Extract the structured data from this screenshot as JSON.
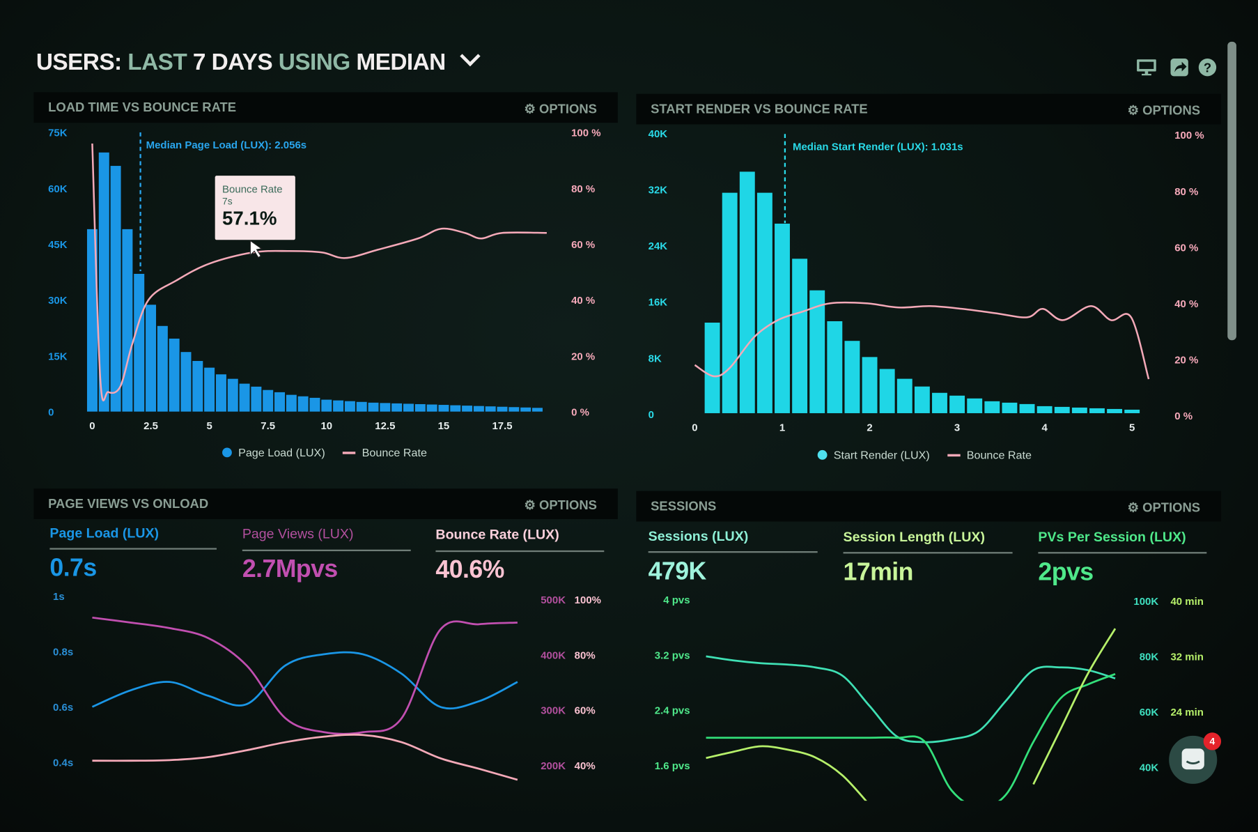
{
  "header": {
    "title_parts": [
      "USERS:",
      "LAST",
      "7 DAYS",
      "USING",
      "MEDIAN"
    ],
    "icons": [
      "monitor-icon",
      "share-icon",
      "help-icon"
    ]
  },
  "colors": {
    "page_load": "#1a96e6",
    "start_render": "#1fd6e6",
    "bounce": "#f4a9b8",
    "page_views": "#c14fb0",
    "session_teal": "#3fe0b4",
    "session_green": "#33e07a",
    "session_lime": "#b6f06a"
  },
  "panels": {
    "load_time": {
      "title": "LOAD TIME VS BOUNCE RATE",
      "options": "OPTIONS",
      "median_label": "Median Page Load (LUX): 2.056s",
      "tooltip": {
        "title": "Bounce Rate",
        "x": "7s",
        "value": "57.1%"
      },
      "legend": [
        "Page Load (LUX)",
        "Bounce Rate"
      ]
    },
    "start_render": {
      "title": "START RENDER VS BOUNCE RATE",
      "options": "OPTIONS",
      "median_label": "Median Start Render (LUX): 1.031s",
      "legend": [
        "Start Render (LUX)",
        "Bounce Rate"
      ]
    },
    "page_views": {
      "title": "PAGE VIEWS VS ONLOAD",
      "options": "OPTIONS",
      "metrics": [
        {
          "label": "Page Load (LUX)",
          "value": "0.7s"
        },
        {
          "label": "Page Views (LUX)",
          "value": "2.7Mpvs"
        },
        {
          "label": "Bounce Rate (LUX)",
          "value": "40.6%"
        }
      ]
    },
    "sessions": {
      "title": "SESSIONS",
      "options": "OPTIONS",
      "metrics": [
        {
          "label": "Sessions (LUX)",
          "value": "479K"
        },
        {
          "label": "Session Length (LUX)",
          "value": "17min"
        },
        {
          "label": "PVs Per Session (LUX)",
          "value": "2pvs"
        }
      ]
    }
  },
  "chat": {
    "badge": "4"
  },
  "chart_data": [
    {
      "type": "bar",
      "name": "load_time",
      "xticks": [
        "0",
        "2.5",
        "5",
        "7.5",
        "10",
        "12.5",
        "15",
        "17.5"
      ],
      "xtick_values": [
        0,
        2.5,
        5,
        7.5,
        10,
        12.5,
        15,
        17.5
      ],
      "yticks_left": [
        "75K",
        "60K",
        "45K",
        "30K",
        "15K",
        "0"
      ],
      "yticks_right": [
        "100 %",
        "80 %",
        "60 %",
        "40 %",
        "20 %",
        "0 %"
      ],
      "ylim_left": [
        0,
        75000
      ],
      "ylim_right": [
        0,
        100
      ],
      "median_x": 2.056,
      "bars": {
        "name": "Page Load (LUX)",
        "x": [
          0,
          0.5,
          1,
          1.5,
          2,
          2.5,
          3,
          3.5,
          4,
          4.5,
          5,
          5.5,
          6,
          6.5,
          7,
          7.5,
          8,
          8.5,
          9,
          9.5,
          10,
          10.5,
          11,
          11.5,
          12,
          12.5,
          13,
          13.5,
          14,
          14.5,
          15,
          15.5,
          16,
          16.5,
          17,
          17.5,
          18,
          18.5,
          19
        ],
        "values": [
          49000,
          69600,
          66000,
          49000,
          37000,
          28700,
          23000,
          19600,
          16000,
          13600,
          11800,
          10000,
          8800,
          7500,
          6700,
          5800,
          5200,
          4500,
          4100,
          3700,
          3200,
          3000,
          2800,
          2600,
          2400,
          2300,
          2200,
          2100,
          2000,
          1900,
          1800,
          1700,
          1600,
          1500,
          1400,
          1300,
          1200,
          1100,
          1000
        ]
      },
      "line": {
        "name": "Bounce Rate",
        "x": [
          0,
          0.34,
          0.68,
          1.2,
          1.7,
          2.4,
          3.6,
          5,
          6.85,
          8.4,
          9.8,
          10.8,
          12.2,
          13.9,
          14.9,
          15.9,
          16.6,
          17.5,
          19.4
        ],
        "values": [
          96,
          12,
          7,
          9,
          24,
          40,
          47,
          53,
          57,
          57.5,
          57,
          55,
          58,
          62,
          65.5,
          64,
          62,
          64,
          64
        ]
      }
    },
    {
      "type": "bar",
      "name": "start_render",
      "xticks": [
        "0",
        "1",
        "2",
        "3",
        "4",
        "5"
      ],
      "xtick_values": [
        0,
        1,
        2,
        3,
        4,
        5
      ],
      "yticks_left": [
        "40K",
        "32K",
        "24K",
        "16K",
        "8K",
        "0"
      ],
      "yticks_right": [
        "100 %",
        "80 %",
        "60 %",
        "40 %",
        "20 %",
        "0 %"
      ],
      "ylim_left": [
        0,
        40000
      ],
      "ylim_right": [
        0,
        100
      ],
      "median_x": 1.031,
      "bars": {
        "name": "Start Render (LUX)",
        "x": [
          0.2,
          0.4,
          0.6,
          0.8,
          1,
          1.2,
          1.4,
          1.6,
          1.8,
          2,
          2.2,
          2.4,
          2.6,
          2.8,
          3,
          3.2,
          3.4,
          3.6,
          3.8,
          4,
          4.2,
          4.4,
          4.6,
          4.8,
          5
        ],
        "values": [
          12900,
          31400,
          34400,
          31400,
          27000,
          22000,
          17500,
          13100,
          10300,
          8000,
          6300,
          4900,
          3800,
          2900,
          2500,
          2100,
          1700,
          1500,
          1300,
          1000,
          900,
          800,
          700,
          600,
          500
        ]
      },
      "line": {
        "name": "Bounce Rate",
        "x": [
          0,
          0.22,
          0.4,
          0.68,
          0.95,
          1.23,
          1.55,
          1.96,
          2.33,
          2.69,
          3.06,
          3.43,
          3.8,
          3.98,
          4.21,
          4.53,
          4.76,
          4.99,
          5.19
        ],
        "values": [
          18,
          14,
          17,
          28,
          34,
          37,
          40,
          40,
          38.5,
          39,
          38,
          36.5,
          35,
          38,
          34,
          39,
          34,
          35,
          13
        ]
      }
    },
    {
      "type": "line",
      "name": "page_views",
      "yticks_left": [
        "1s",
        "0.8s",
        "0.6s",
        "0.4s"
      ],
      "yticks_right_a": [
        "500K",
        "400K",
        "300K",
        "200K"
      ],
      "yticks_right_b": [
        "100%",
        "80%",
        "60%",
        "40%"
      ],
      "series": [
        {
          "axis": "left",
          "unit": "s",
          "values": [
            0.6,
            0.66,
            0.69,
            0.64,
            0.61,
            0.75,
            0.79,
            0.79,
            0.72,
            0.6,
            0.62,
            0.69
          ]
        },
        {
          "axis": "right_a",
          "unit": "K",
          "values": [
            467,
            458,
            448,
            430,
            380,
            285,
            260,
            260,
            285,
            445,
            455,
            458
          ]
        },
        {
          "axis": "right_b",
          "unit": "%",
          "values": [
            41.7,
            41.7,
            41.9,
            43,
            45.5,
            48.4,
            50.4,
            51,
            48.4,
            42.6,
            38.8,
            34.8
          ]
        }
      ]
    },
    {
      "type": "line",
      "name": "sessions",
      "yticks_left": [
        "4 pvs",
        "3.2 pvs",
        "2.4 pvs",
        "1.6 pvs"
      ],
      "yticks_right_a": [
        "100K",
        "80K",
        "60K",
        "40K"
      ],
      "yticks_right_b": [
        "40 min",
        "32 min",
        "24 min"
      ],
      "series": [
        {
          "axis": "right_a",
          "unit": "K",
          "values": [
            80,
            78.5,
            77.5,
            77,
            76,
            73,
            62,
            51,
            49,
            50,
            53,
            64,
            75,
            76,
            75,
            72
          ]
        },
        {
          "axis": "left",
          "unit": "pvs",
          "values": [
            2,
            2,
            2,
            2,
            2,
            2,
            2,
            2,
            1.95,
            1.24,
            1.0,
            1.18,
            1.94,
            2.57,
            2.77,
            2.92
          ]
        },
        {
          "axis": "right_b",
          "unit": "min",
          "values": [
            17.3,
            18.2,
            19,
            18.5,
            17.4,
            14.8,
            10.5,
            null,
            null,
            null,
            null,
            null,
            13.5,
            21.5,
            29.5,
            36
          ]
        }
      ]
    }
  ]
}
